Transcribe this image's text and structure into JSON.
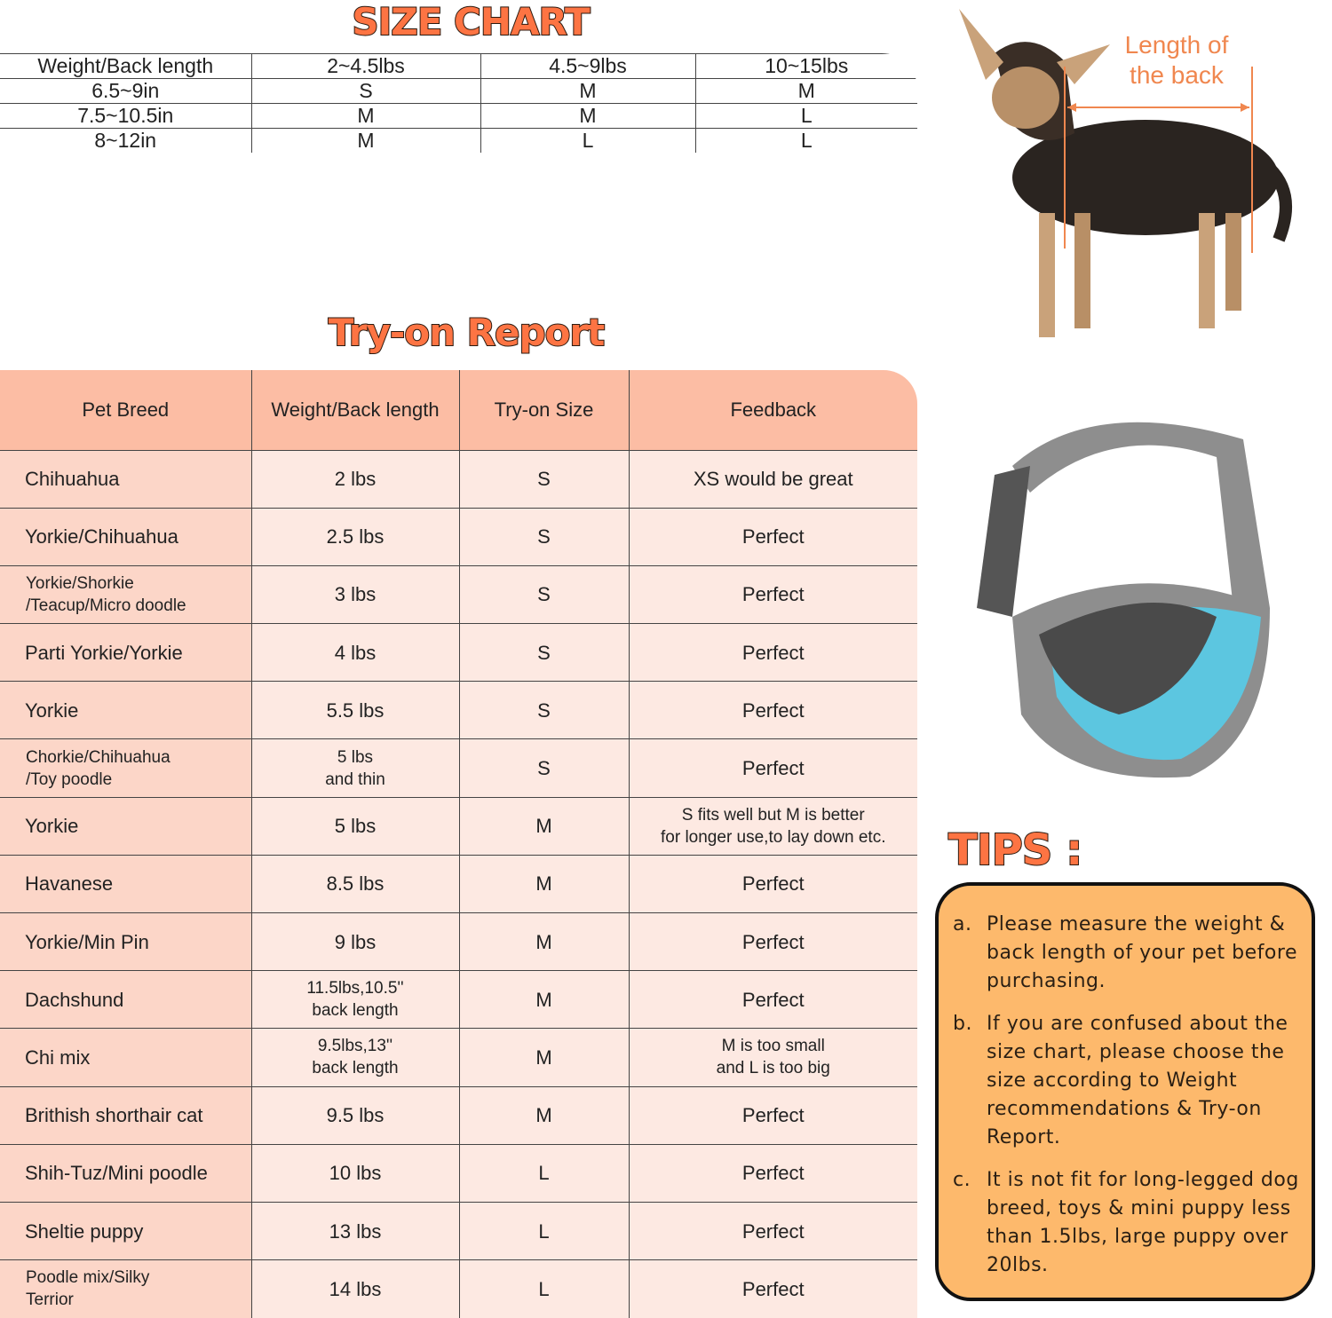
{
  "size_chart": {
    "title": "SIZE CHART",
    "headers": [
      "Weight/Back length",
      "2~4.5lbs",
      "4.5~9lbs",
      "10~15lbs"
    ],
    "rows": [
      [
        "6.5~9in",
        "S",
        "M",
        "M"
      ],
      [
        "7.5~10.5in",
        "M",
        "M",
        "L"
      ],
      [
        "8~12in",
        "M",
        "L",
        "L"
      ]
    ]
  },
  "tryon_report": {
    "title": "Try-on Report",
    "headers": [
      "Pet Breed",
      "Weight/Back length",
      "Try-on Size",
      "Feedback"
    ],
    "rows": [
      [
        "Chihuahua",
        "2 lbs",
        "S",
        "XS would be great"
      ],
      [
        "Yorkie/Chihuahua",
        "2.5 lbs",
        "S",
        "Perfect"
      ],
      [
        "Yorkie/Shorkie\n/Teacup/Micro doodle",
        "3 lbs",
        "S",
        "Perfect"
      ],
      [
        "Parti Yorkie/Yorkie",
        "4 lbs",
        "S",
        "Perfect"
      ],
      [
        "Yorkie",
        "5.5 lbs",
        "S",
        "Perfect"
      ],
      [
        "Chorkie/Chihuahua\n/Toy poodle",
        "5 lbs\nand thin",
        "S",
        "Perfect"
      ],
      [
        "Yorkie",
        "5 lbs",
        "M",
        "S fits well but M is better\nfor longer use,to lay down etc."
      ],
      [
        "Havanese",
        "8.5 lbs",
        "M",
        "Perfect"
      ],
      [
        "Yorkie/Min Pin",
        "9 lbs",
        "M",
        "Perfect"
      ],
      [
        "Dachshund",
        "11.5lbs,10.5''\nback length",
        "M",
        "Perfect"
      ],
      [
        "Chi mix",
        "9.5lbs,13''\nback length",
        "M",
        "M is too small\nand L is too big"
      ],
      [
        "Brithish shorthair cat",
        "9.5 lbs",
        "M",
        "Perfect"
      ],
      [
        "Shih-Tuz/Mini poodle",
        "10 lbs",
        "L",
        "Perfect"
      ],
      [
        "Sheltie puppy",
        "13 lbs",
        "L",
        "Perfect"
      ],
      [
        "Poodle mix/Silky\n Terrior",
        "14 lbs",
        "L",
        "Perfect"
      ]
    ]
  },
  "dog_image": {
    "label": "Length of the back",
    "label_color": "#f0874f"
  },
  "sling_image": {
    "colors": {
      "body": "#8e8e8e",
      "mesh": "#5cc6e0"
    }
  },
  "tips": {
    "title": "TIPS :",
    "items": [
      {
        "label": "a.",
        "text": "Please measure the weight & back length of your pet before purchasing."
      },
      {
        "label": "b.",
        "text": "If you are confused about the size chart, please choose the size according to Weight recommendations & Try-on Report."
      },
      {
        "label": "c.",
        "text": "It is not fit for long-legged dog breed, toys & mini puppy less than 1.5lbs, large puppy over 20lbs."
      }
    ]
  },
  "colors": {
    "header_orange": "#fd7443",
    "tips_fill": "#fdb96c",
    "tryon_header": "#fcbda4"
  }
}
